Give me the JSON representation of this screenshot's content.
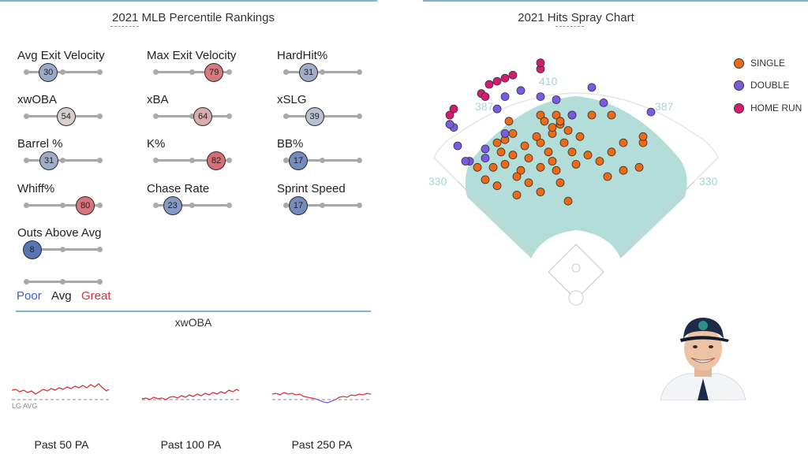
{
  "left_title": "2021 MLB Percentile Rankings",
  "right_title": "2021 Hits Spray Chart",
  "metrics": [
    {
      "label": "Avg Exit Velocity",
      "value": 30
    },
    {
      "label": "Max Exit Velocity",
      "value": 79
    },
    {
      "label": "HardHit%",
      "value": 31
    },
    {
      "label": "xwOBA",
      "value": 54
    },
    {
      "label": "xBA",
      "value": 64
    },
    {
      "label": "xSLG",
      "value": 39
    },
    {
      "label": "Barrel %",
      "value": 31
    },
    {
      "label": "K%",
      "value": 82
    },
    {
      "label": "BB%",
      "value": 17
    },
    {
      "label": "Whiff%",
      "value": 80
    },
    {
      "label": "Chase Rate",
      "value": 23
    },
    {
      "label": "Sprint Speed",
      "value": 17
    },
    {
      "label": "Outs Above Avg",
      "value": 8
    }
  ],
  "scale": {
    "poor": "Poor",
    "avg": "Avg",
    "great": "Great"
  },
  "colors": {
    "poor": "#3f63b0",
    "great": "#d6323a",
    "single": "#ef6a12",
    "double": "#7b5be6",
    "home_run": "#d81b72",
    "field": "#b3ddd8",
    "accent": "#25b39b"
  },
  "trend": {
    "title": "xwOBA",
    "lg_avg": "LG AVG",
    "panels": [
      {
        "label": "Past 50 PA"
      },
      {
        "label": "Past 100 PA"
      },
      {
        "label": "Past 250 PA"
      }
    ]
  },
  "chart_data": {
    "type": "scatter",
    "title": "2021 Hits Spray Chart",
    "field_labels": {
      "left_line": "330",
      "left_center": "387",
      "center": "410",
      "right_center": "387",
      "right_line": "330"
    },
    "legend": [
      "SINGLE",
      "DOUBLE",
      "HOME RUN"
    ],
    "legend_placement": "top-right",
    "series": [
      {
        "name": "SINGLE",
        "points": [
          [
            -10,
            160
          ],
          [
            -45,
            175
          ],
          [
            -75,
            170
          ],
          [
            -20,
            190
          ],
          [
            -60,
            190
          ],
          [
            -100,
            185
          ],
          [
            40,
            200
          ],
          [
            -25,
            210
          ],
          [
            -70,
            210
          ],
          [
            -45,
            215
          ],
          [
            -90,
            220
          ],
          [
            60,
            210
          ],
          [
            0,
            220
          ],
          [
            -5,
            240
          ],
          [
            -35,
            240
          ],
          [
            -80,
            235
          ],
          [
            -95,
            240
          ],
          [
            -60,
            230
          ],
          [
            -30,
            225
          ],
          [
            15,
            235
          ],
          [
            30,
            225
          ],
          [
            80,
            215
          ],
          [
            85,
            255
          ],
          [
            85,
            265
          ],
          [
            -15,
            255
          ],
          [
            -45,
            255
          ],
          [
            -65,
            250
          ],
          [
            -10,
            275
          ],
          [
            -30,
            270
          ],
          [
            -50,
            265
          ],
          [
            -80,
            270
          ],
          [
            5,
            265
          ],
          [
            -20,
            285
          ],
          [
            -30,
            280
          ],
          [
            45,
            240
          ],
          [
            60,
            255
          ],
          [
            -25,
            300
          ],
          [
            20,
            300
          ],
          [
            45,
            300
          ],
          [
            -45,
            300
          ],
          [
            -85,
            290
          ],
          [
            -105,
            215
          ],
          [
            -125,
            215
          ],
          [
            -115,
            195
          ],
          [
            -100,
            255
          ],
          [
            -75,
            200
          ],
          [
            -90,
            260
          ],
          [
            -40,
            290
          ],
          [
            -20,
            290
          ],
          [
            -5,
            300
          ]
        ]
      },
      {
        "name": "DOUBLE",
        "points": [
          [
            -90,
            270
          ],
          [
            -115,
            245
          ],
          [
            -135,
            225
          ],
          [
            -150,
            250
          ],
          [
            -155,
            280
          ],
          [
            -160,
            285
          ],
          [
            -100,
            310
          ],
          [
            -90,
            330
          ],
          [
            -70,
            340
          ],
          [
            -45,
            330
          ],
          [
            -25,
            325
          ],
          [
            -5,
            300
          ],
          [
            35,
            320
          ],
          [
            20,
            345
          ],
          [
            95,
            305
          ],
          [
            -115,
            230
          ],
          [
            -140,
            225
          ]
        ]
      },
      {
        "name": "HOME RUN",
        "points": [
          [
            -90,
            360
          ],
          [
            -100,
            355
          ],
          [
            -110,
            350
          ],
          [
            -80,
            365
          ],
          [
            -45,
            375
          ],
          [
            -45,
            385
          ],
          [
            -155,
            310
          ],
          [
            -160,
            300
          ],
          [
            -120,
            335
          ],
          [
            -115,
            330
          ]
        ]
      }
    ]
  }
}
